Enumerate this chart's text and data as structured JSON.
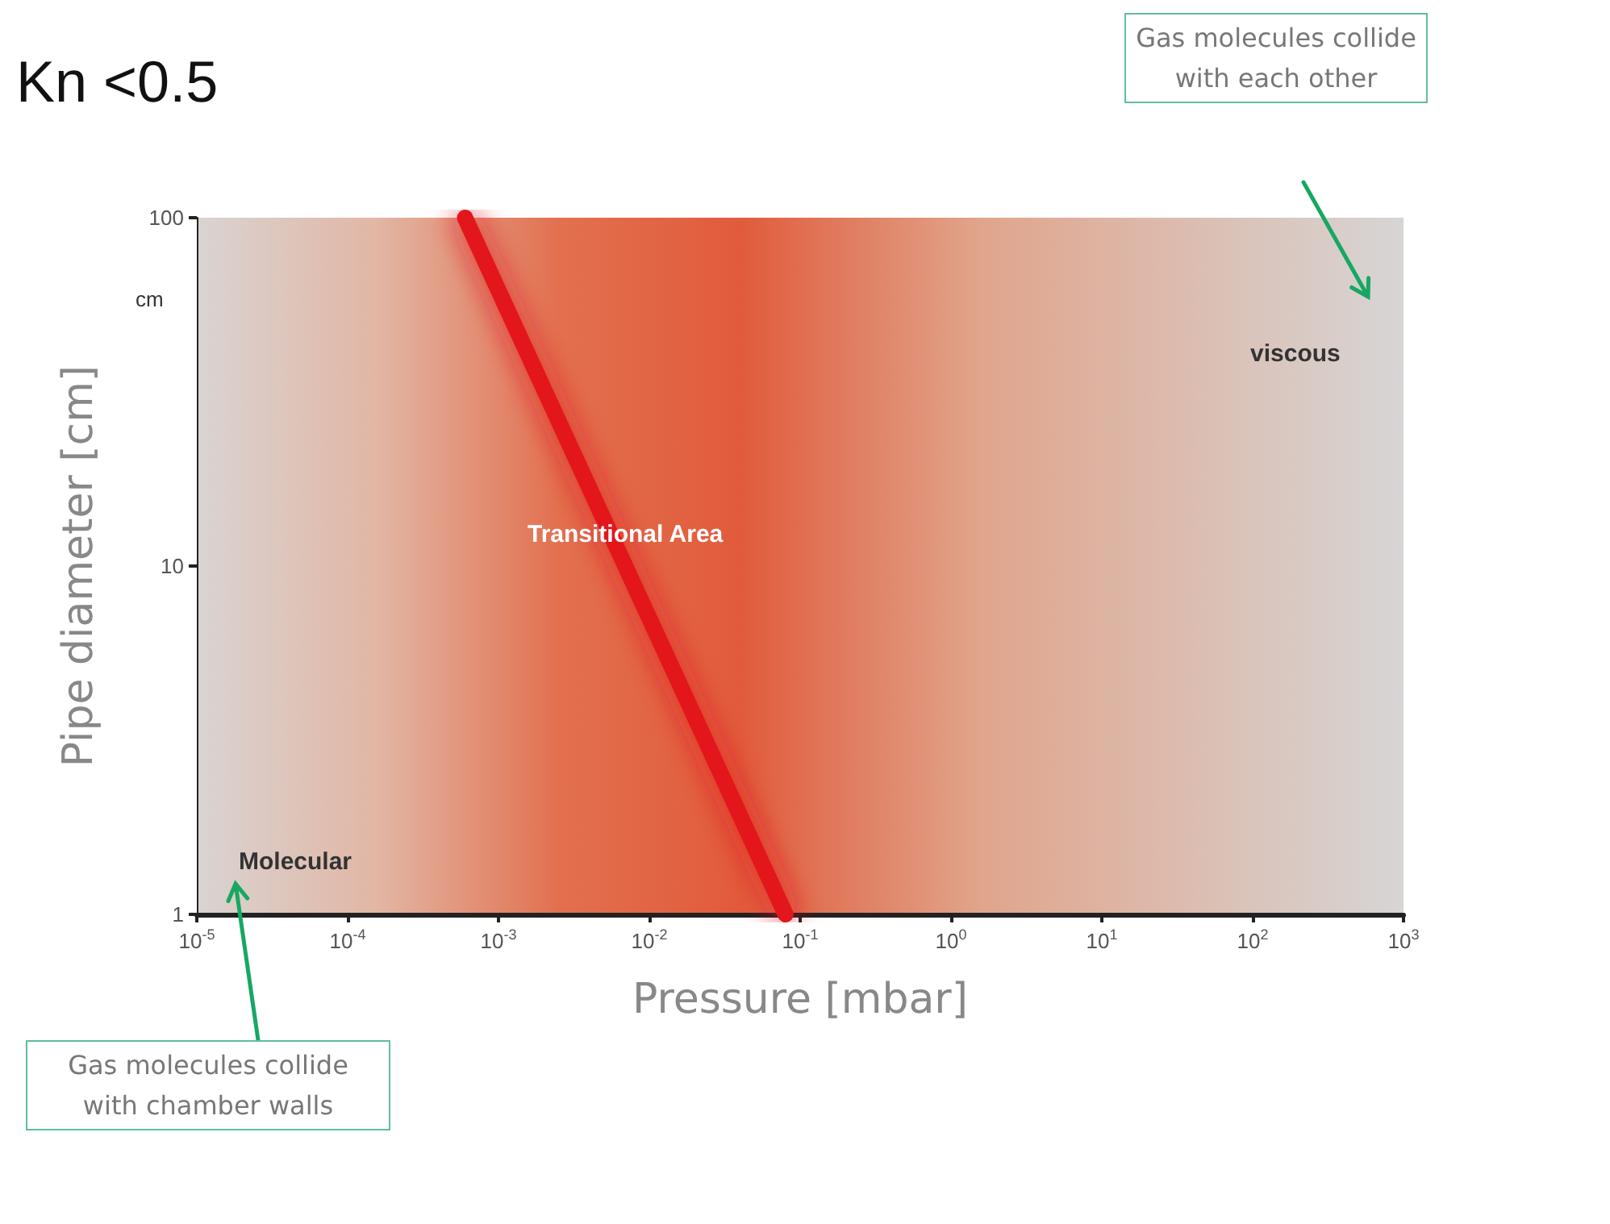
{
  "chart_data": {
    "type": "line",
    "title": "Kn <0.5",
    "xlabel": "Pressure [mbar]",
    "ylabel": "Pipe diameter [cm]",
    "log": "xy",
    "x": [
      0.0006,
      0.08
    ],
    "series": [
      {
        "color": "#e3141c",
        "values": [
          100,
          1
        ]
      }
    ],
    "xlim": [
      1e-05,
      1000
    ],
    "ylim": [
      1,
      100
    ],
    "xticks": [
      {
        "value": 1e-05,
        "label": "10$^{-5}$"
      },
      {
        "value": 0.0001,
        "label": "10$^{-4}$"
      },
      {
        "value": 0.001,
        "label": "10$^{-3}$"
      },
      {
        "value": 0.01,
        "label": "10$^{-2}$"
      },
      {
        "value": 0.1,
        "label": "10$^{-1}$"
      },
      {
        "value": 1,
        "label": "10$^{0}$"
      },
      {
        "value": 10,
        "label": "10$^{1}$"
      },
      {
        "value": 100,
        "label": "10$^{2}$"
      },
      {
        "value": 1000,
        "label": "10$^{3}$"
      }
    ],
    "yticks": [
      1,
      10,
      100
    ],
    "grid": false,
    "line_style": "solid",
    "annotations": [
      "cm",
      "Transitional Area",
      "viscous",
      "Molecular",
      "Gas molecules collide with each other",
      "Gas molecules collide with chamber walls"
    ]
  }
}
